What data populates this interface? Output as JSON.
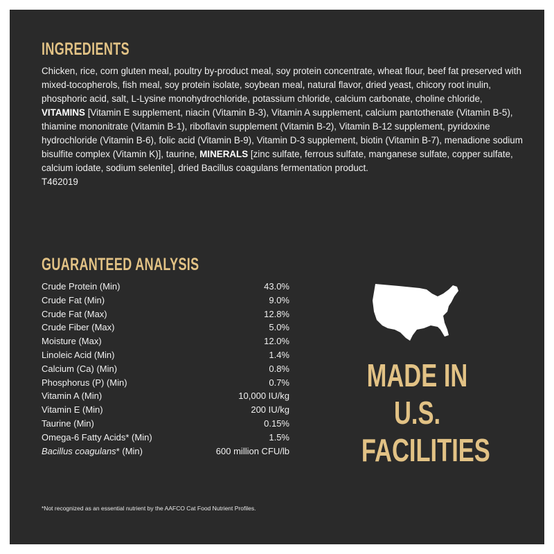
{
  "ingredients": {
    "title": "INGREDIENTS",
    "text_1": "Chicken, rice, corn gluten meal, poultry by-product meal, soy protein concentrate, wheat flour, beef fat preserved with mixed-tocopherols, fish meal, soy protein isolate, soybean meal, natural flavor, dried yeast, chicory root inulin, phosphoric acid, salt, L-Lysine monohydrochloride, potassium chloride, calcium carbonate, choline chloride, ",
    "vitamins_label": "VITAMINS",
    "text_2": " [Vitamin E supplement, niacin (Vitamin B-3), Vitamin A supplement, calcium pantothenate (Vitamin B-5), thiamine mononitrate (Vitamin B-1), riboflavin supplement (Vitamin B-2), Vitamin B-12 supplement, pyridoxine hydrochloride (Vitamin B-6), folic acid (Vitamin B-9), Vitamin D-3 supplement, biotin (Vitamin B-7), menadione sodium bisulfite complex (Vitamin K)], taurine, ",
    "minerals_label": "MINERALS",
    "text_3": " [zinc sulfate, ferrous sulfate, manganese sulfate, copper sulfate, calcium iodate, sodium selenite], dried Bacillus coagulans fermentation product.",
    "code": "T462019"
  },
  "analysis": {
    "title": "GUARANTEED ANALYSIS",
    "rows": [
      {
        "label": "Crude Protein (Min)",
        "value": "43.0%"
      },
      {
        "label": "Crude Fat (Min)",
        "value": "9.0%"
      },
      {
        "label": "Crude Fat (Max)",
        "value": "12.8%"
      },
      {
        "label": "Crude Fiber (Max)",
        "value": "5.0%"
      },
      {
        "label": "Moisture (Max)",
        "value": "12.0%"
      },
      {
        "label": "Linoleic Acid (Min)",
        "value": "1.4%"
      },
      {
        "label": "Calcium (Ca) (Min)",
        "value": "0.8%"
      },
      {
        "label": "Phosphorus (P) (Min)",
        "value": "0.7%"
      },
      {
        "label": "Vitamin A (Min)",
        "value": "10,000 IU/kg"
      },
      {
        "label": "Vitamin E (Min)",
        "value": "200 IU/kg"
      },
      {
        "label": "Taurine (Min)",
        "value": "0.15%"
      },
      {
        "label": "Omega-6 Fatty Acids* (Min)",
        "value": "1.5%"
      }
    ],
    "last_row": {
      "label_italic": "Bacillus coagulans",
      "label_rest": "* (Min)",
      "value": "600 million CFU/lb"
    }
  },
  "badge": {
    "icon": "usa-map-icon",
    "line1": "MADE IN",
    "line2": "U.S.",
    "line3": "FACILITIES"
  },
  "footnote": "*Not recognized as an essential nutrient by the AAFCO Cat Food Nutrient Profiles.",
  "colors": {
    "background": "#2a2a2a",
    "accent": "#e2c285",
    "text": "#f0f0f0"
  }
}
